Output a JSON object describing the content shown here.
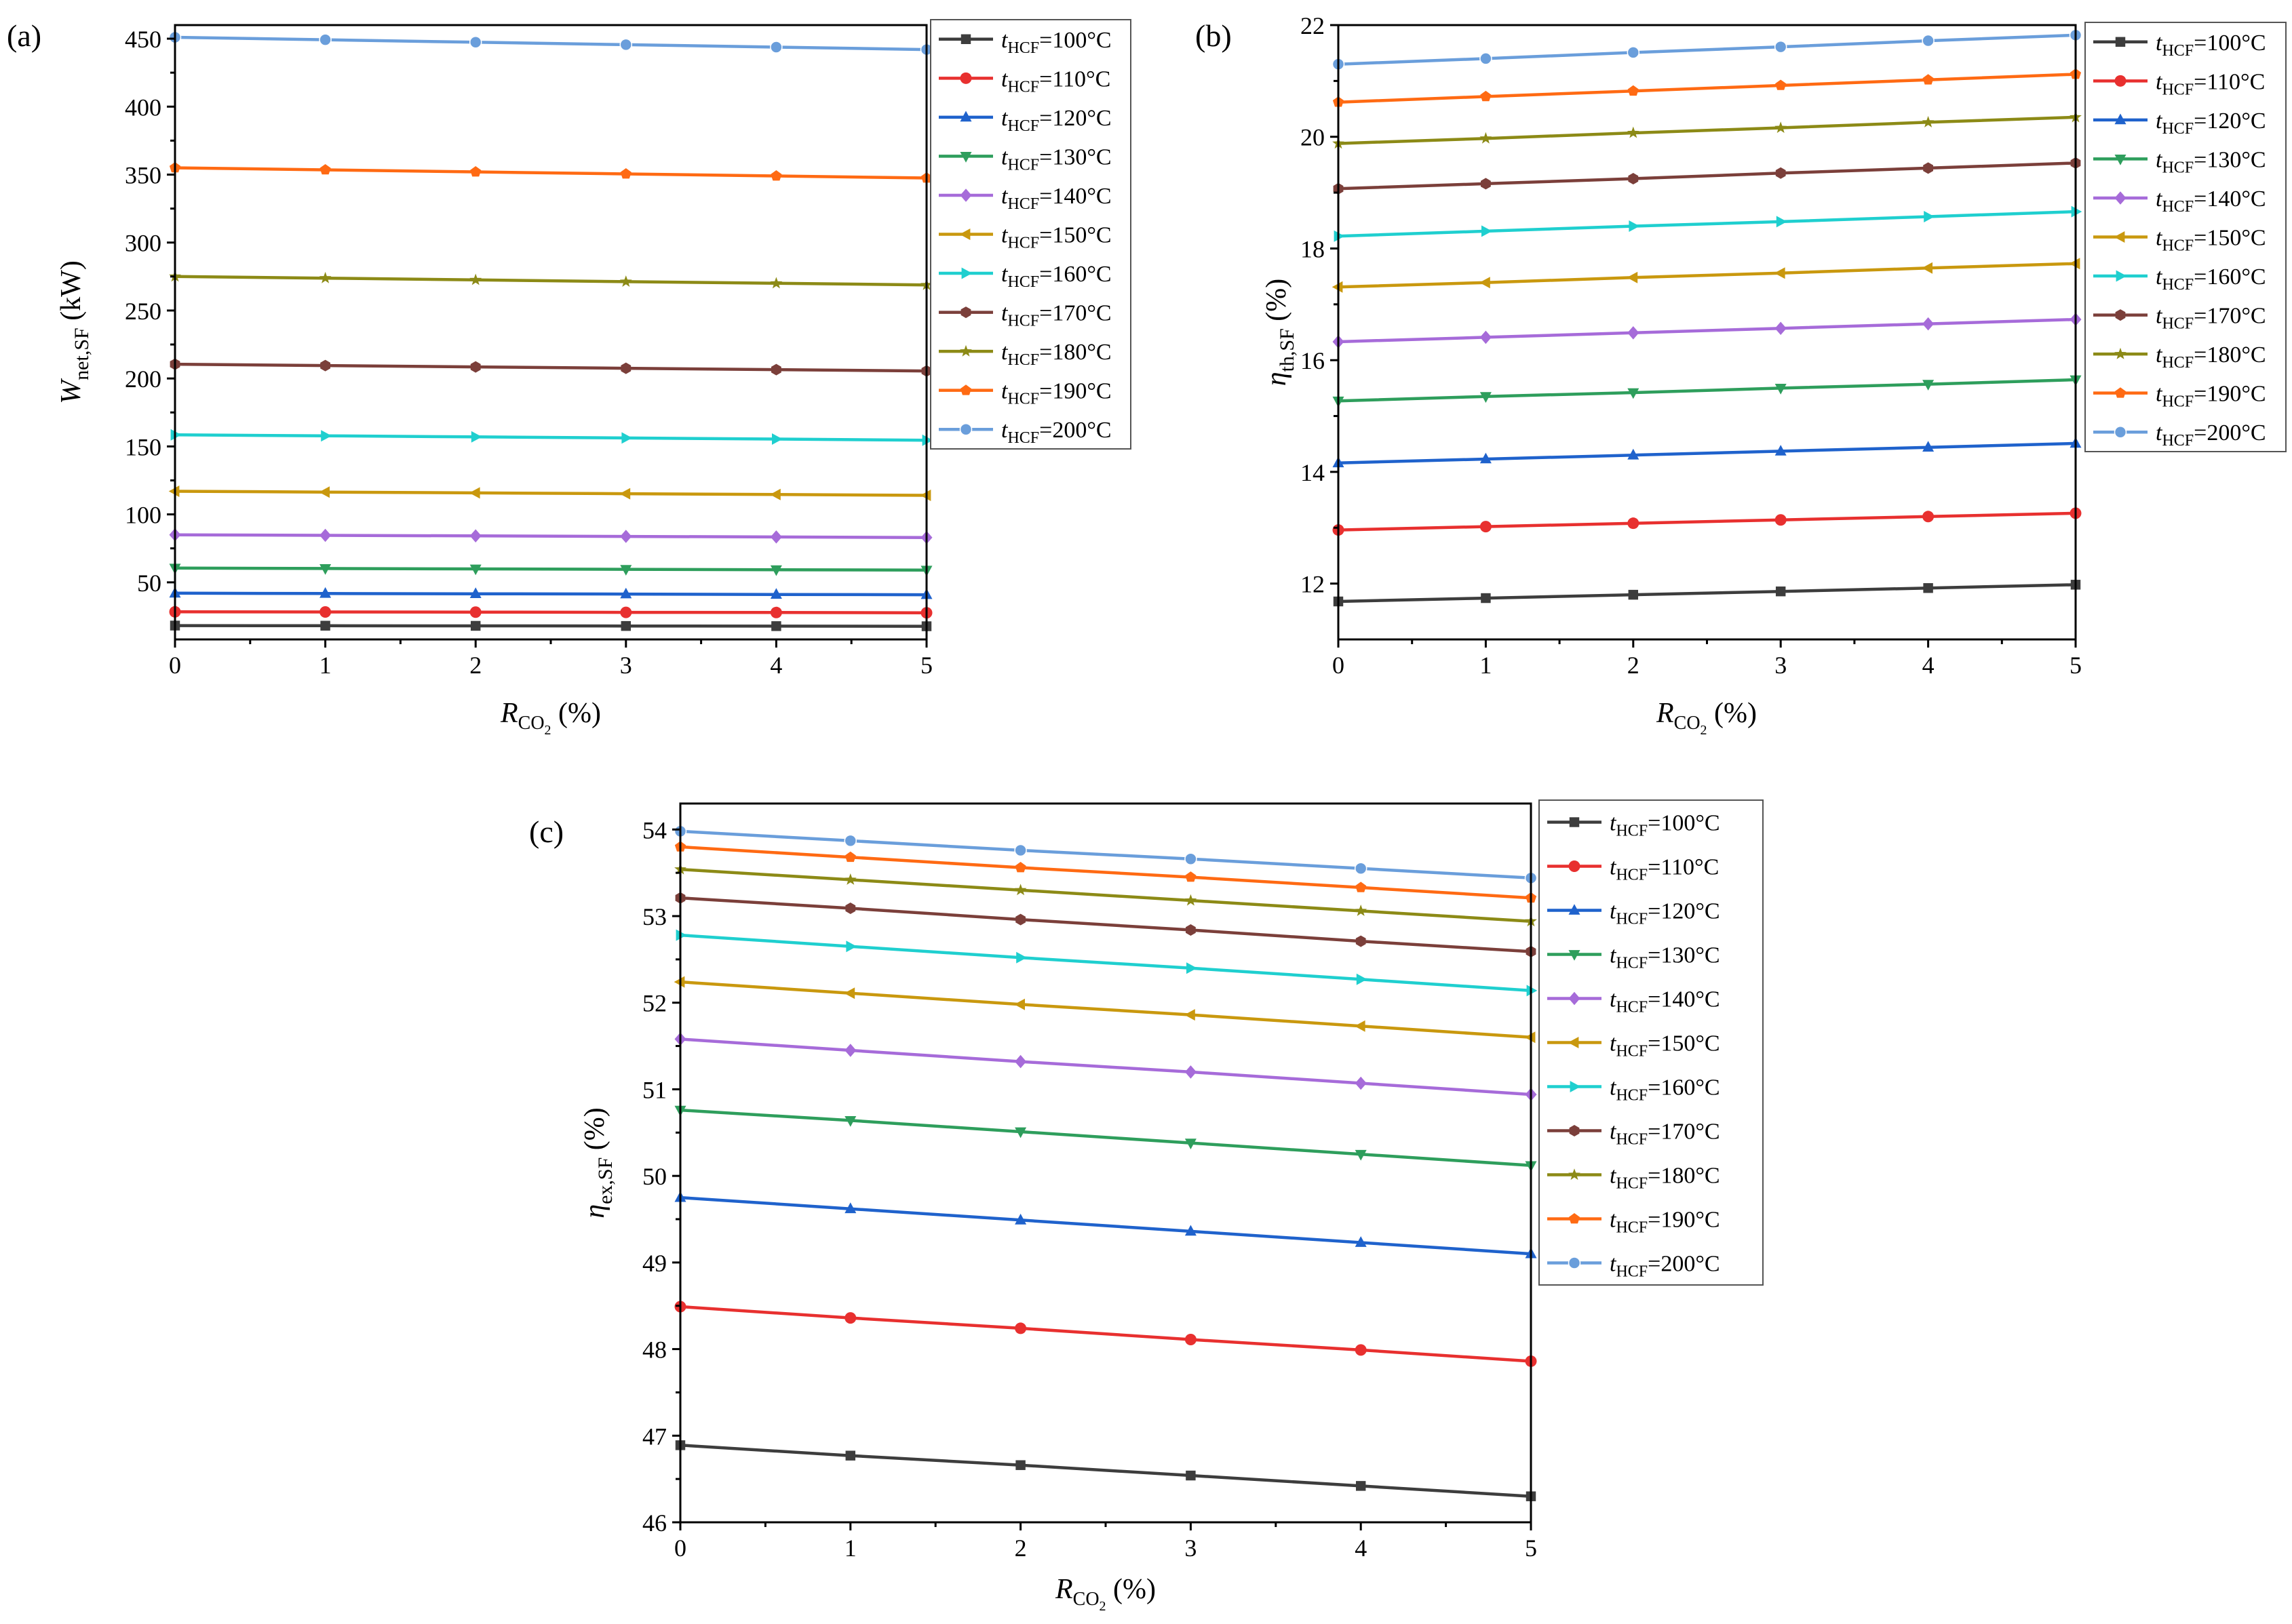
{
  "figure": {
    "legend_prefix": "t",
    "legend_subscript": "HCF",
    "legend_entries": [
      "=100°C",
      "=110°C",
      "=120°C",
      "=130°C",
      "=140°C",
      "=150°C",
      "=160°C",
      "=170°C",
      "=180°C",
      "=190°C",
      "=200°C"
    ],
    "series_colors": [
      "#3d3d3d",
      "#e8302f",
      "#1f62cc",
      "#2e9e5c",
      "#a66bd9",
      "#c9980e",
      "#1fcfcf",
      "#7b3f3a",
      "#8c8a16",
      "#ff6a13",
      "#6a9edb"
    ],
    "series_markers": [
      "square",
      "circle",
      "triangle-up",
      "triangle-down",
      "diamond",
      "triangle-left",
      "triangle-right",
      "hexagon",
      "star",
      "pentagon",
      "circle-half"
    ],
    "x_label_main": "R",
    "x_label_sub": "CO",
    "x_label_subsub": "2",
    "x_label_unit": " (%)"
  },
  "chart_data": [
    {
      "type": "line",
      "panel_label": "(a)",
      "x": [
        0,
        1,
        2,
        3,
        4,
        5
      ],
      "xlim": [
        0,
        5
      ],
      "ylim": [
        8,
        460
      ],
      "yticks": [
        50,
        100,
        150,
        200,
        250,
        300,
        350,
        400,
        450
      ],
      "ylabel_main": "W",
      "ylabel_sub": "net,SF",
      "ylabel_unit": " (kW)",
      "series": [
        {
          "name": "tHCF=100°C",
          "values": [
            18.2,
            18.1,
            18.0,
            17.9,
            17.8,
            17.7
          ]
        },
        {
          "name": "tHCF=110°C",
          "values": [
            28.3,
            28.2,
            28.1,
            27.9,
            27.8,
            27.6
          ]
        },
        {
          "name": "tHCF=120°C",
          "values": [
            42.0,
            41.8,
            41.6,
            41.4,
            41.1,
            40.9
          ]
        },
        {
          "name": "tHCF=130°C",
          "values": [
            60.5,
            60.2,
            59.9,
            59.6,
            59.3,
            59.0
          ]
        },
        {
          "name": "tHCF=140°C",
          "values": [
            85.0,
            84.6,
            84.2,
            83.8,
            83.4,
            83.0
          ]
        },
        {
          "name": "tHCF=150°C",
          "values": [
            117.0,
            116.4,
            115.8,
            115.2,
            114.6,
            114.0
          ]
        },
        {
          "name": "tHCF=160°C",
          "values": [
            158.5,
            157.8,
            157.0,
            156.2,
            155.4,
            154.6
          ]
        },
        {
          "name": "tHCF=170°C",
          "values": [
            210.5,
            209.5,
            208.5,
            207.5,
            206.5,
            205.5
          ]
        },
        {
          "name": "tHCF=180°C",
          "values": [
            275.0,
            273.8,
            272.5,
            271.2,
            270.0,
            268.8
          ]
        },
        {
          "name": "tHCF=190°C",
          "values": [
            355.0,
            353.5,
            352.0,
            350.5,
            349.0,
            347.5
          ]
        },
        {
          "name": "tHCF=200°C",
          "values": [
            451.0,
            449.2,
            447.4,
            445.6,
            443.8,
            442.0
          ]
        }
      ]
    },
    {
      "type": "line",
      "panel_label": "(b)",
      "x": [
        0,
        1,
        2,
        3,
        4,
        5
      ],
      "xlim": [
        0,
        5
      ],
      "ylim": [
        11,
        22
      ],
      "yticks": [
        12,
        14,
        16,
        18,
        20,
        22
      ],
      "ylabel_main": "η",
      "ylabel_sub": "th,SF",
      "ylabel_unit": " (%)",
      "series": [
        {
          "name": "tHCF=100°C",
          "values": [
            11.68,
            11.74,
            11.8,
            11.86,
            11.92,
            11.98
          ]
        },
        {
          "name": "tHCF=110°C",
          "values": [
            12.96,
            13.02,
            13.08,
            13.14,
            13.2,
            13.26
          ]
        },
        {
          "name": "tHCF=120°C",
          "values": [
            14.16,
            14.23,
            14.3,
            14.37,
            14.44,
            14.51
          ]
        },
        {
          "name": "tHCF=130°C",
          "values": [
            15.27,
            15.35,
            15.42,
            15.5,
            15.57,
            15.65
          ]
        },
        {
          "name": "tHCF=140°C",
          "values": [
            16.33,
            16.41,
            16.49,
            16.57,
            16.65,
            16.73
          ]
        },
        {
          "name": "tHCF=150°C",
          "values": [
            17.31,
            17.39,
            17.48,
            17.56,
            17.65,
            17.73
          ]
        },
        {
          "name": "tHCF=160°C",
          "values": [
            18.22,
            18.31,
            18.4,
            18.48,
            18.57,
            18.66
          ]
        },
        {
          "name": "tHCF=170°C",
          "values": [
            19.07,
            19.16,
            19.25,
            19.35,
            19.44,
            19.53
          ]
        },
        {
          "name": "tHCF=180°C",
          "values": [
            19.88,
            19.97,
            20.07,
            20.16,
            20.26,
            20.35
          ]
        },
        {
          "name": "tHCF=190°C",
          "values": [
            20.62,
            20.72,
            20.82,
            20.92,
            21.02,
            21.12
          ]
        },
        {
          "name": "tHCF=200°C",
          "values": [
            21.3,
            21.4,
            21.51,
            21.61,
            21.72,
            21.82
          ]
        }
      ]
    },
    {
      "type": "line",
      "panel_label": "(c)",
      "x": [
        0,
        1,
        2,
        3,
        4,
        5
      ],
      "xlim": [
        0,
        5
      ],
      "ylim": [
        46,
        54.3
      ],
      "yticks": [
        46,
        47,
        48,
        49,
        50,
        51,
        52,
        53,
        54
      ],
      "ylabel_main": "η",
      "ylabel_sub": "ex,SF",
      "ylabel_unit": " (%)",
      "series": [
        {
          "name": "tHCF=100°C",
          "values": [
            46.89,
            46.77,
            46.66,
            46.54,
            46.42,
            46.3
          ]
        },
        {
          "name": "tHCF=110°C",
          "values": [
            48.49,
            48.36,
            48.24,
            48.11,
            47.99,
            47.86
          ]
        },
        {
          "name": "tHCF=120°C",
          "values": [
            49.75,
            49.62,
            49.49,
            49.36,
            49.23,
            49.1
          ]
        },
        {
          "name": "tHCF=130°C",
          "values": [
            50.76,
            50.64,
            50.51,
            50.38,
            50.25,
            50.12
          ]
        },
        {
          "name": "tHCF=140°C",
          "values": [
            51.58,
            51.45,
            51.32,
            51.2,
            51.07,
            50.94
          ]
        },
        {
          "name": "tHCF=150°C",
          "values": [
            52.24,
            52.11,
            51.98,
            51.86,
            51.73,
            51.6
          ]
        },
        {
          "name": "tHCF=160°C",
          "values": [
            52.78,
            52.65,
            52.52,
            52.4,
            52.27,
            52.14
          ]
        },
        {
          "name": "tHCF=170°C",
          "values": [
            53.21,
            53.09,
            52.96,
            52.84,
            52.71,
            52.59
          ]
        },
        {
          "name": "tHCF=180°C",
          "values": [
            53.54,
            53.42,
            53.3,
            53.18,
            53.06,
            52.94
          ]
        },
        {
          "name": "tHCF=190°C",
          "values": [
            53.8,
            53.68,
            53.56,
            53.45,
            53.33,
            53.21
          ]
        },
        {
          "name": "tHCF=200°C",
          "values": [
            53.98,
            53.87,
            53.76,
            53.66,
            53.55,
            53.44
          ]
        }
      ]
    }
  ]
}
